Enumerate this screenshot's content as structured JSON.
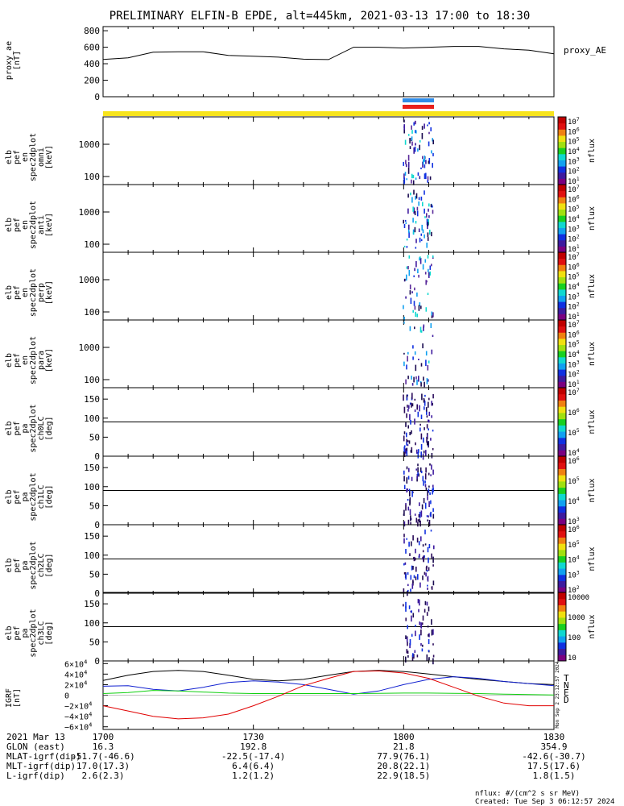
{
  "title": "PRELIMINARY ELFIN-B EPDE, alt=445km, 2021-03-13 17:00 to 18:30",
  "colors": {
    "bar_yellow": "#f7e41c",
    "bar_blue": "#2f8ce8",
    "bar_red": "#e8201c",
    "trace_black": "#000000",
    "trace_blue": "#1020d0",
    "trace_green": "#10d010",
    "trace_red": "#e00000"
  },
  "ae_panel": {
    "ylabel": [
      "proxy_ae",
      "[nT]"
    ],
    "yticks": [
      "800",
      "600",
      "400",
      "200",
      "0"
    ],
    "legend": "proxy_AE",
    "chart_data": {
      "type": "line",
      "x_minutes": [
        0,
        5,
        10,
        15,
        20,
        25,
        30,
        35,
        40,
        45,
        50,
        55,
        60,
        65,
        70,
        75,
        80,
        85,
        90
      ],
      "values": [
        452,
        472,
        540,
        545,
        545,
        500,
        490,
        480,
        455,
        450,
        600,
        600,
        590,
        600,
        610,
        610,
        580,
        565,
        520
      ],
      "ylim": [
        0,
        850
      ]
    }
  },
  "spec_panels": [
    {
      "ylabel": [
        "elb",
        "pef",
        "en",
        "spec2dplot",
        "omni",
        "[keV]"
      ],
      "yticks": [
        "1000",
        "100"
      ],
      "cb_label": "nflux",
      "cb_ticks": [
        "10^7",
        "10^6",
        "10^5",
        "10^4",
        "10^3",
        "10^2",
        "10^1"
      ]
    },
    {
      "ylabel": [
        "elb",
        "pef",
        "en",
        "spec2dplot",
        "anti",
        "[keV]"
      ],
      "yticks": [
        "1000",
        "100"
      ],
      "cb_label": "nflux",
      "cb_ticks": [
        "10^7",
        "10^6",
        "10^5",
        "10^4",
        "10^3",
        "10^2",
        "10^1"
      ]
    },
    {
      "ylabel": [
        "elb",
        "pef",
        "en",
        "spec2dplot",
        "perp",
        "[keV]"
      ],
      "yticks": [
        "1000",
        "100"
      ],
      "cb_label": "nflux",
      "cb_ticks": [
        "10^7",
        "10^6",
        "10^5",
        "10^4",
        "10^3",
        "10^2",
        "10^1"
      ]
    },
    {
      "ylabel": [
        "elb",
        "pef",
        "en",
        "spec2dplot",
        "para",
        "[keV]"
      ],
      "yticks": [
        "1000",
        "100"
      ],
      "cb_label": "nflux",
      "cb_ticks": [
        "10^7",
        "10^6",
        "10^5",
        "10^4",
        "10^3",
        "10^2",
        "10^1"
      ]
    }
  ],
  "pa_panels": [
    {
      "ylabel": [
        "elb",
        "pef",
        "pa",
        "spec2dplot",
        "ch0LC",
        "[deg]"
      ],
      "yticks": [
        "150",
        "100",
        "50",
        "0"
      ],
      "cb_label": "nflux",
      "cb_ticks": [
        "10^7",
        "10^6",
        "10^5",
        "10^4"
      ]
    },
    {
      "ylabel": [
        "elb",
        "pef",
        "pa",
        "spec2dplot",
        "ch1LC",
        "[deg]"
      ],
      "yticks": [
        "150",
        "100",
        "50",
        "0"
      ],
      "cb_label": "nflux",
      "cb_ticks": [
        "10^6",
        "10^5",
        "10^4",
        "10^3"
      ]
    },
    {
      "ylabel": [
        "elb",
        "pef",
        "pa",
        "spec2dplot",
        "ch2LC",
        "[deg]"
      ],
      "yticks": [
        "150",
        "100",
        "50",
        "0"
      ],
      "cb_label": "nflux",
      "cb_ticks": [
        "10^6",
        "10^5",
        "10^4",
        "10^3",
        "10^2"
      ]
    },
    {
      "ylabel": [
        "elb",
        "pef",
        "pa",
        "spec2dplot",
        "ch3LC",
        "[deg]"
      ],
      "yticks": [
        "150",
        "100",
        "50",
        "0"
      ],
      "cb_label": "nflux",
      "cb_ticks": [
        "10000",
        "1000",
        "100",
        "10"
      ]
    }
  ],
  "igrf_panel": {
    "ylabel": [
      "IGRF",
      "[nT]"
    ],
    "yticks": [
      "6×10^4",
      "4×10^4",
      "2×10^4",
      "0",
      "−2×10^4",
      "−4×10^4",
      "−6×10^4"
    ],
    "legend": [
      "T",
      "N",
      "E",
      "D"
    ],
    "side_note": "Mon Sep  2 23:12:57 2024",
    "chart_data": {
      "type": "line",
      "x_minutes": [
        0,
        5,
        10,
        15,
        20,
        25,
        30,
        35,
        40,
        45,
        50,
        55,
        60,
        65,
        70,
        75,
        80,
        85,
        90
      ],
      "ylim": [
        -65000,
        65000
      ],
      "series": [
        {
          "name": "T",
          "color": "#000000",
          "values": [
            28000,
            38000,
            45000,
            47000,
            45000,
            38000,
            30000,
            27000,
            30000,
            38000,
            45000,
            47000,
            45000,
            40000,
            35000,
            30000,
            26000,
            22000,
            20000
          ]
        },
        {
          "name": "N",
          "color": "#1020d0",
          "values": [
            17000,
            18000,
            11000,
            8000,
            15000,
            24000,
            27000,
            25000,
            20000,
            11000,
            2000,
            8000,
            20000,
            30000,
            35000,
            32000,
            26000,
            22000,
            18000
          ]
        },
        {
          "name": "E",
          "color": "#10d010",
          "values": [
            3000,
            5000,
            9000,
            8000,
            6000,
            4000,
            3000,
            3000,
            3000,
            3000,
            3000,
            3500,
            4000,
            4000,
            3500,
            3000,
            2000,
            1000,
            500
          ]
        },
        {
          "name": "D",
          "color": "#e00000",
          "values": [
            -20000,
            -30000,
            -40000,
            -45000,
            -43000,
            -36000,
            -20000,
            -2000,
            18000,
            32000,
            45000,
            46000,
            42000,
            32000,
            15000,
            -2000,
            -15000,
            -20000,
            -20000
          ]
        }
      ]
    }
  },
  "x_axis": {
    "tick_labels": [
      "1700",
      "1730",
      "1800",
      "1830"
    ],
    "tick_minutes": [
      0,
      30,
      60,
      90
    ],
    "rows": [
      {
        "label": "2021 Mar 13",
        "values": [
          "",
          "",
          "",
          ""
        ]
      },
      {
        "label": "GLON (east)",
        "values": [
          "16.3",
          "192.8",
          "21.8",
          "354.9"
        ]
      },
      {
        "label": "MLAT-igrf(dip)",
        "values": [
          "-51.7(-46.6)",
          "-22.5(-17.4)",
          "77.9(76.1)",
          "-42.6(-30.7)"
        ]
      },
      {
        "label": "MLT-igrf(dip)",
        "values": [
          "17.0(17.3)",
          "6.4(6.4)",
          "20.8(22.1)",
          "17.5(17.6)"
        ]
      },
      {
        "label": "L-igrf(dip)",
        "values": [
          "2.6(2.3)",
          "1.2(1.2)",
          "22.9(18.5)",
          "1.8(1.5)"
        ]
      }
    ]
  },
  "footer": {
    "units": "nflux: #/(cm^2 s sr MeV)",
    "created": "Created: Tue Sep  3 06:12:57 2024"
  }
}
